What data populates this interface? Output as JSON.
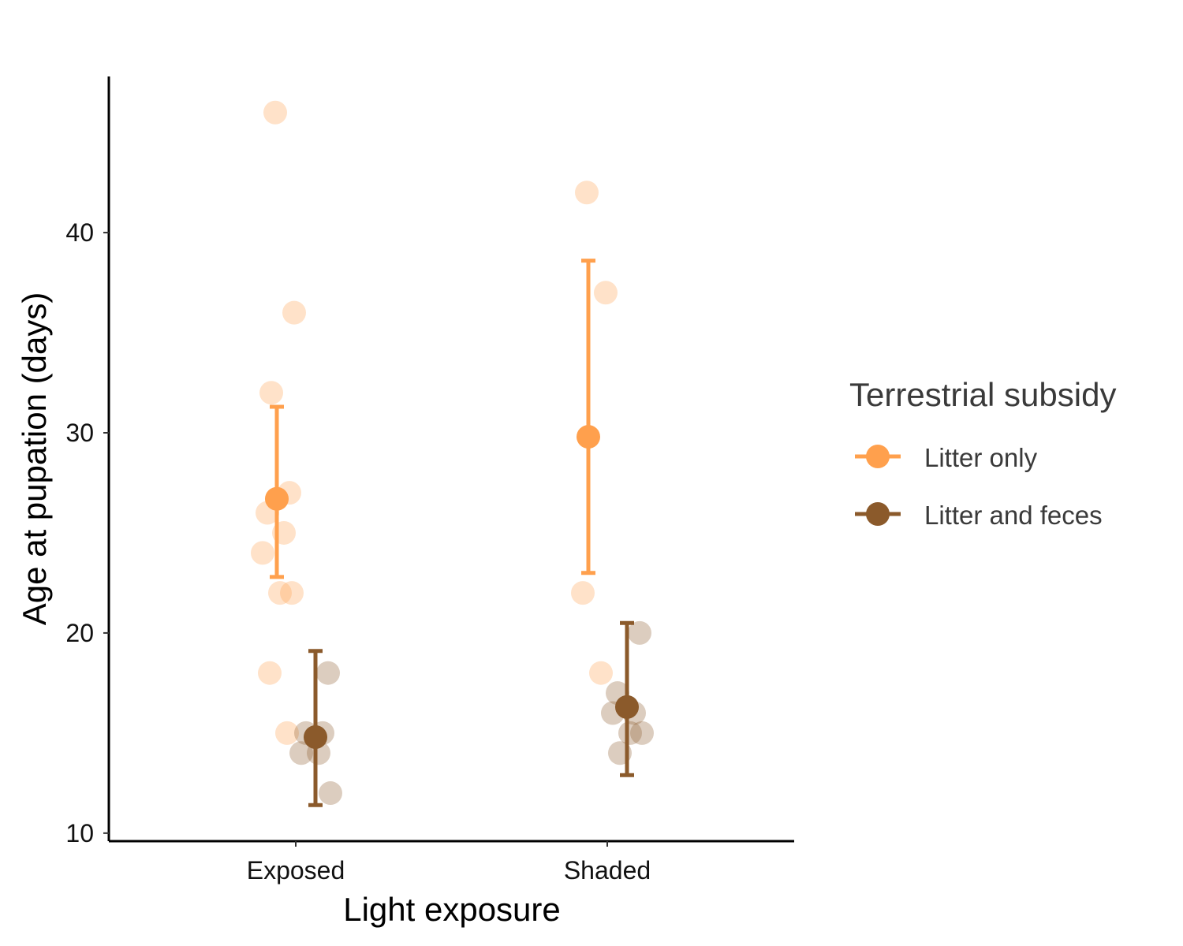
{
  "chart_data": {
    "type": "scatter",
    "xlabel": "Light exposure",
    "ylabel": "Age at pupation (days)",
    "categories": [
      "Exposed",
      "Shaded"
    ],
    "yticks": [
      10,
      20,
      30,
      40
    ],
    "ylim": [
      9.6,
      47.8
    ],
    "grid": false,
    "legend": {
      "title": "Terrestrial subsidy",
      "placement": "right",
      "entries": [
        "Litter only",
        "Litter and feces"
      ]
    },
    "series": [
      {
        "name": "Litter only",
        "color": "#FFA04D",
        "raw_points": [
          {
            "category": "Exposed",
            "y": [
              46,
              36,
              32,
              27,
              26,
              25,
              24,
              22,
              22,
              18,
              15
            ]
          },
          {
            "category": "Shaded",
            "y": [
              42,
              37,
              22,
              18
            ]
          }
        ],
        "summary": [
          {
            "category": "Exposed",
            "mean": 26.7,
            "lower": 22.8,
            "upper": 31.3
          },
          {
            "category": "Shaded",
            "mean": 29.8,
            "lower": 23.0,
            "upper": 38.6
          }
        ]
      },
      {
        "name": "Litter and feces",
        "color": "#8B5A2B",
        "raw_points": [
          {
            "category": "Exposed",
            "y": [
              18,
              15,
              15,
              14,
              14,
              12
            ]
          },
          {
            "category": "Shaded",
            "y": [
              20,
              17,
              16,
              16,
              15,
              15,
              14
            ]
          }
        ],
        "summary": [
          {
            "category": "Exposed",
            "mean": 14.8,
            "lower": 11.4,
            "upper": 19.1
          },
          {
            "category": "Shaded",
            "mean": 16.3,
            "lower": 12.9,
            "upper": 20.5
          }
        ]
      }
    ]
  }
}
